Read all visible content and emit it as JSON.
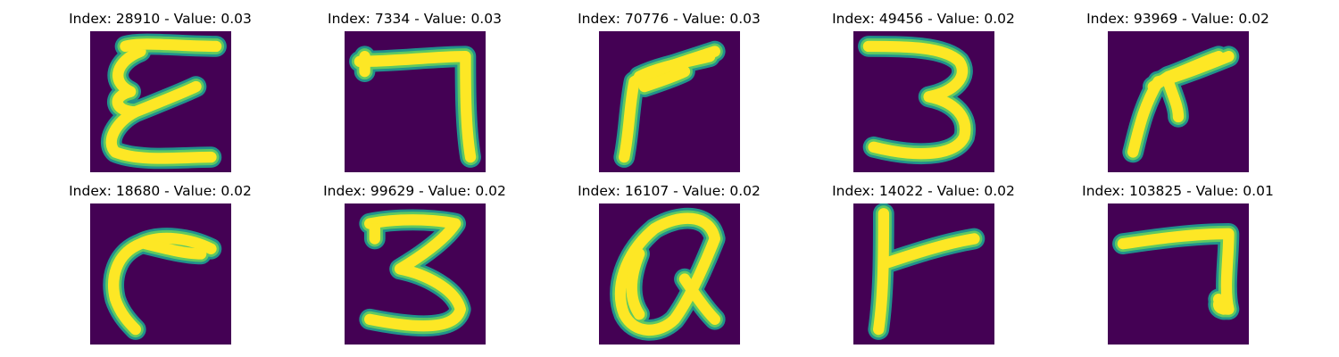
{
  "figure": {
    "background": "#440154",
    "stroke_outer": "#21918c",
    "stroke_mid": "#5ec962",
    "stroke_inner": "#fde725",
    "colormap": "viridis",
    "panels": [
      {
        "title": "Index: 28910 - Value: 0.03",
        "glyph": "E-shaped handwritten character"
      },
      {
        "title": "Index: 7334 - Value: 0.03",
        "glyph": "seven"
      },
      {
        "title": "Index: 70776 - Value: 0.03",
        "glyph": "slanted seven"
      },
      {
        "title": "Index: 49456 - Value: 0.02",
        "glyph": "three"
      },
      {
        "title": "Index: 93969 - Value: 0.02",
        "glyph": "thick stroke character"
      },
      {
        "title": "Index: 18680 - Value: 0.02",
        "glyph": "curved hook"
      },
      {
        "title": "Index: 99629 - Value: 0.02",
        "glyph": "three"
      },
      {
        "title": "Index: 16107 - Value: 0.02",
        "glyph": "loop character"
      },
      {
        "title": "Index: 14022 - Value: 0.02",
        "glyph": "r-shaped character"
      },
      {
        "title": "Index: 103825 - Value: 0.01",
        "glyph": "seven"
      }
    ]
  }
}
